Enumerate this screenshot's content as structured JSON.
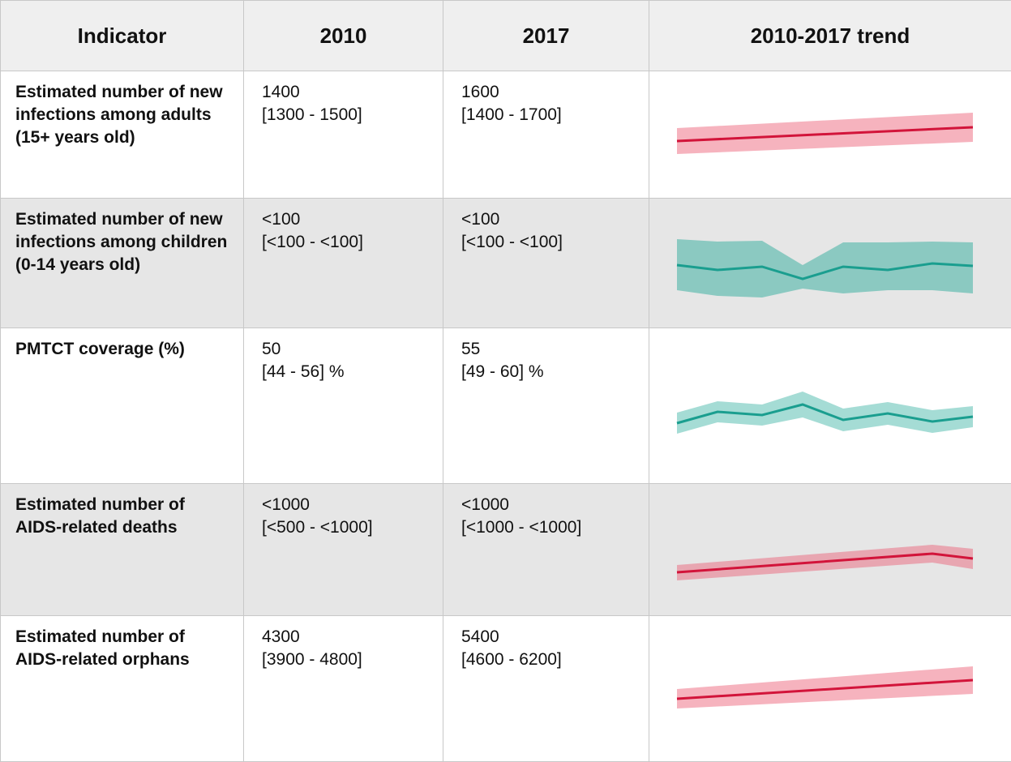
{
  "table": {
    "header": [
      "Indicator",
      "2010",
      "2017",
      "2010-2017 trend"
    ],
    "rows": [
      {
        "indicator": "Estimated number of new infections among adults (15+ years old)",
        "y2010": [
          "1400",
          "[1300 - 1500]"
        ],
        "y2017": [
          "1600",
          "[1400 - 1700]"
        ]
      },
      {
        "indicator": "Estimated number of new infections among children (0-14 years old)",
        "y2010": [
          "<100",
          "[<100 - <100]"
        ],
        "y2017": [
          "<100",
          "[<100 - <100]"
        ]
      },
      {
        "indicator": "PMTCT coverage (%)",
        "y2010": [
          "50",
          "[44 - 56] %"
        ],
        "y2017": [
          "55",
          "[49 - 60] %"
        ]
      },
      {
        "indicator": "Estimated number of AIDS-related deaths",
        "y2010": [
          "<1000",
          "[<500 - <1000]"
        ],
        "y2017": [
          "<1000",
          "[<1000 - <1000]"
        ]
      },
      {
        "indicator": "Estimated number of AIDS-related orphans",
        "y2010": [
          "4300",
          "[3900 - 4800]"
        ],
        "y2017": [
          "5400",
          "[4600 - 6200]"
        ]
      }
    ]
  }
}
